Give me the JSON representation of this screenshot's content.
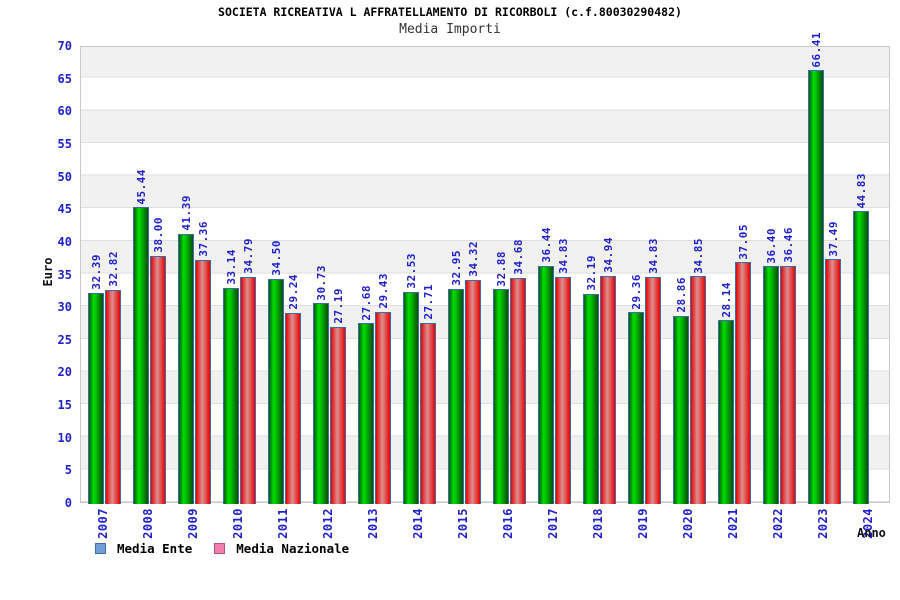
{
  "chart_data": {
    "type": "bar",
    "title": "SOCIETA RICREATIVA L AFFRATELLAMENTO DI RICORBOLI (c.f.80030290482)",
    "subtitle": "Media Importi",
    "ylabel": "Euro",
    "xlabel": "Anno",
    "ylim": [
      0,
      70
    ],
    "ytick_step": 5,
    "grid": "horizontal gridlines with alternating 5-unit shaded bands",
    "legend_position": "bottom-left",
    "value_label_decimals": 2,
    "categories": [
      "2007",
      "2008",
      "2009",
      "2010",
      "2011",
      "2012",
      "2013",
      "2014",
      "2015",
      "2016",
      "2017",
      "2018",
      "2019",
      "2020",
      "2021",
      "2022",
      "2023",
      "2024"
    ],
    "series": [
      {
        "name": "Media Ente",
        "values": [
          32.39,
          45.44,
          41.39,
          33.14,
          34.5,
          30.73,
          27.68,
          32.53,
          32.95,
          32.88,
          36.44,
          32.19,
          29.36,
          28.86,
          28.14,
          36.4,
          66.41,
          44.83
        ],
        "legend_swatch_fill": "#6f9ed6",
        "legend_swatch_border": "#3f6fa5",
        "bar_gradient_stops": [
          "#0a5a0a 0%",
          "#00dc00 32%",
          "#00cc00 45%",
          "#0a4d0a 100%"
        ]
      },
      {
        "name": "Media Nazionale",
        "values": [
          32.82,
          38.0,
          37.36,
          34.79,
          29.24,
          27.19,
          29.43,
          27.71,
          34.32,
          34.68,
          34.83,
          34.94,
          34.83,
          34.85,
          37.05,
          36.46,
          37.49,
          null
        ],
        "legend_swatch_fill": "#ee7fad",
        "legend_swatch_border": "#b5517e",
        "bar_gradient_stops": [
          "#e60404 0%",
          "#dd8f8f 45%",
          "#e60404 100%"
        ]
      }
    ],
    "colors": {
      "axis_text": "#2222cc",
      "title_text": "#000000",
      "subtitle_text": "#333333",
      "band_shaded": "#f1f1f1",
      "band_plain": "#ffffff",
      "gridline": "#dedede",
      "plot_border": "#c9c9c9",
      "bar_border": "#3a6ea5"
    }
  }
}
